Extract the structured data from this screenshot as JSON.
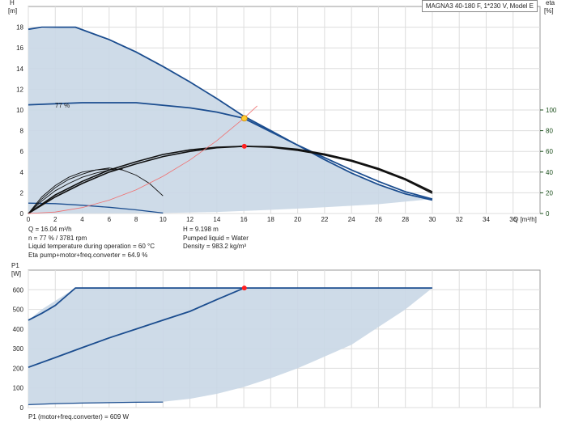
{
  "colors": {
    "envelope_fill": "#c9d7e5",
    "curve": "#1b4d8f",
    "eta": "#111111",
    "system": "#f07070",
    "duty": "#ff2020",
    "duty_fill": "#ffcc33",
    "grid": "#dddddd",
    "eta_axis": "#1a4d1a"
  },
  "header": {
    "model": "MAGNA3 40-180 F, 1*230 V, Model E"
  },
  "info": {
    "q": "Q = 16.04 m³/h",
    "n": "n = 77 % / 3781 rpm",
    "liquid_temp": "Liquid temperature during operation = 60 °C",
    "eta_total": "Eta pump+motor+freq.converter = 64.9 %",
    "h": "H = 9.198 m",
    "liquid": "Pumped liquid = Water",
    "density": "Density = 983.2 kg/m³",
    "p1": "P1 (motor+freq.converter) = 609 W"
  },
  "chart_data": [
    {
      "type": "line",
      "ylabel_line1": "H",
      "ylabel_line2": "[m]",
      "y2label_line1": "eta",
      "y2label_line2": "[%]",
      "xlabel": "Q [m³/h]",
      "xlim": [
        0,
        38
      ],
      "ylim": [
        0,
        20
      ],
      "y2lim": [
        0,
        100
      ],
      "x_ticks": [
        "0",
        "2",
        "4",
        "6",
        "8",
        "10",
        "12",
        "14",
        "16",
        "18",
        "20",
        "22",
        "24",
        "26",
        "28",
        "30",
        "32",
        "34",
        "36"
      ],
      "y_ticks": [
        "0",
        "2",
        "4",
        "6",
        "8",
        "10",
        "12",
        "14",
        "16",
        "18"
      ],
      "y2_ticks": [
        "0",
        "20",
        "40",
        "60",
        "80",
        "100"
      ],
      "grid": true,
      "annotation": "77 %",
      "envelope": {
        "x": [
          0,
          3.5,
          8,
          12,
          16,
          20,
          24,
          28,
          30,
          30,
          26,
          22,
          18,
          14,
          10,
          6,
          2,
          0
        ],
        "y": [
          17.8,
          18,
          15.6,
          12.7,
          9.4,
          6.6,
          3.9,
          1.9,
          1.3,
          1.4,
          0.9,
          0.6,
          0.35,
          0.15,
          0.05,
          0.02,
          0,
          0
        ]
      },
      "series": [
        {
          "id": "max_curve",
          "x": [
            0,
            1,
            3.5,
            6,
            8,
            10,
            12,
            14,
            16,
            18,
            20,
            22,
            24,
            26,
            28,
            30
          ],
          "y": [
            17.8,
            18,
            18,
            16.8,
            15.6,
            14.2,
            12.7,
            11.1,
            9.4,
            8.0,
            6.6,
            5.2,
            3.9,
            2.8,
            1.9,
            1.3
          ]
        },
        {
          "id": "speed_77",
          "x": [
            0,
            4,
            8,
            12,
            14,
            16
          ],
          "y": [
            10.5,
            10.7,
            10.7,
            10.2,
            9.8,
            9.198
          ]
        },
        {
          "id": "speed_77_ext",
          "x": [
            16,
            18,
            20,
            22,
            24,
            26,
            28,
            30
          ],
          "y": [
            9.198,
            7.9,
            6.6,
            5.4,
            4.2,
            3.1,
            2.1,
            1.4
          ]
        },
        {
          "id": "min_curve",
          "x": [
            0,
            2,
            4,
            6,
            8,
            10
          ],
          "y": [
            1.0,
            0.95,
            0.8,
            0.6,
            0.35,
            0.05
          ]
        },
        {
          "id": "eta_max",
          "x": [
            0,
            2,
            4,
            6,
            8,
            10,
            12,
            14,
            16,
            18,
            20,
            22,
            24,
            26,
            28,
            30
          ],
          "y": [
            0,
            16,
            29,
            40,
            48,
            55,
            60,
            63.5,
            64.9,
            64.5,
            62,
            57.5,
            51.5,
            43.5,
            33.5,
            21
          ]
        },
        {
          "id": "eta_77",
          "x": [
            0,
            2,
            4,
            6,
            8,
            10,
            12,
            14,
            16,
            18,
            20,
            22,
            24,
            26,
            28,
            30
          ],
          "y": [
            0,
            18,
            31,
            42,
            50,
            57,
            61.5,
            64,
            64.9,
            64,
            61,
            56.5,
            50.5,
            42.5,
            32.5,
            19.5
          ]
        },
        {
          "id": "eta_low1",
          "x": [
            0,
            1,
            2,
            3,
            4,
            5,
            6
          ],
          "y": [
            0,
            16,
            27,
            35,
            40,
            42,
            43
          ]
        },
        {
          "id": "eta_low2",
          "x": [
            0,
            1,
            2,
            3,
            4,
            5,
            6,
            7,
            8,
            9,
            10
          ],
          "y": [
            0,
            14,
            25,
            33,
            38,
            42,
            44,
            42,
            37,
            29,
            17
          ]
        },
        {
          "id": "eta_low3",
          "x": [
            0,
            1,
            2,
            3,
            4,
            5,
            6,
            7
          ],
          "y": [
            0,
            12,
            22,
            29,
            35,
            39,
            42,
            43
          ]
        },
        {
          "id": "system_curve",
          "x": [
            0,
            2,
            4,
            6,
            8,
            10,
            12,
            14,
            16,
            17
          ],
          "y": [
            0,
            0.14,
            0.57,
            1.29,
            2.29,
            3.59,
            5.17,
            7.04,
            9.198,
            10.4
          ]
        }
      ],
      "duty_point": {
        "x": 16.04,
        "y": 9.198
      },
      "eta_point": {
        "x": 16.04,
        "y": 64.9
      }
    },
    {
      "type": "line",
      "ylabel_line1": "P1",
      "ylabel_line2": "[W]",
      "xlim": [
        0,
        38
      ],
      "ylim": [
        0,
        700
      ],
      "y_ticks": [
        "0",
        "100",
        "200",
        "300",
        "400",
        "500",
        "600"
      ],
      "grid": true,
      "envelope": {
        "x": [
          0,
          1,
          3.5,
          10,
          16,
          20,
          24,
          28,
          30,
          28,
          26,
          24,
          22,
          20,
          18,
          16,
          14,
          12,
          10,
          6,
          2,
          0
        ],
        "y": [
          445,
          500,
          609,
          609,
          609,
          609,
          609,
          609,
          609,
          500,
          410,
          320,
          260,
          200,
          150,
          105,
          70,
          45,
          30,
          25,
          20,
          15
        ]
      },
      "series": [
        {
          "id": "p1_max",
          "x": [
            0,
            1,
            2,
            3.5,
            6,
            10,
            16,
            20,
            24,
            28,
            30
          ],
          "y": [
            445,
            480,
            520,
            609,
            609,
            609,
            609,
            609,
            609,
            609,
            609
          ]
        },
        {
          "id": "p1_77",
          "x": [
            0,
            2,
            4,
            6,
            8,
            10,
            12,
            14,
            16.04
          ],
          "y": [
            205,
            255,
            305,
            355,
            400,
            445,
            490,
            550,
            609
          ]
        },
        {
          "id": "p1_min",
          "x": [
            0,
            2,
            4,
            6,
            8,
            10
          ],
          "y": [
            15,
            20,
            23,
            25,
            27,
            28
          ]
        }
      ],
      "duty_point": {
        "x": 16.04,
        "y": 609
      }
    }
  ]
}
